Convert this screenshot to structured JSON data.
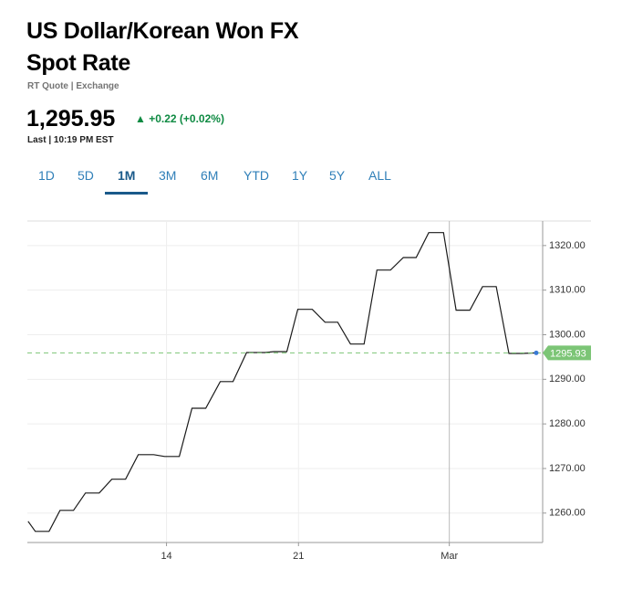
{
  "header": {
    "title_line1": "US Dollar/Korean Won FX",
    "title_line2": "Spot Rate",
    "source": "RT Quote | Exchange",
    "price": "1,295.95",
    "change": "+0.22 (+0.02%)",
    "last_update": "Last | 10:19 PM EST",
    "tabs": [
      "1D",
      "5D",
      "1M",
      "3M",
      "6M",
      "YTD",
      "1Y",
      "5Y",
      "ALL"
    ],
    "active_tab": 2
  },
  "chart_data": {
    "type": "line",
    "x": [
      6.66,
      7.04,
      7.77,
      8.35,
      9.07,
      9.7,
      10.43,
      11.1,
      11.83,
      12.5,
      13.32,
      13.9,
      14.68,
      15.35,
      16.08,
      16.85,
      17.53,
      18.25,
      19.22,
      19.7,
      20.38,
      20.96,
      21.73,
      22.41,
      23.08,
      23.76,
      24.48,
      25.16,
      25.88,
      26.56,
      27.24,
      27.91,
      28.69,
      29.36,
      30.09,
      30.76,
      31.49,
      32.16,
      32.84,
      33.61
    ],
    "series": [
      {
        "color": "#1a1a1a",
        "values": [
          1258.15,
          1255.9,
          1255.9,
          1260.6,
          1260.6,
          1264.5,
          1264.5,
          1267.6,
          1267.6,
          1273.1,
          1273.1,
          1272.7,
          1272.7,
          1283.5,
          1283.5,
          1289.5,
          1289.5,
          1296.0,
          1296.0,
          1296.2,
          1296.2,
          1305.7,
          1305.7,
          1302.8,
          1302.8,
          1297.9,
          1297.9,
          1314.5,
          1314.5,
          1317.3,
          1317.3,
          1322.9,
          1322.9,
          1305.5,
          1305.5,
          1310.8,
          1310.8,
          1295.8,
          1295.8,
          1295.93
        ]
      }
    ],
    "last_value": 1295.93,
    "last_color": "#7cc576",
    "xlim": [
      6.62,
      33.95
    ],
    "xticks": [
      14,
      21,
      {
        "value": 29,
        "label": "Mar"
      }
    ],
    "ylim": [
      1253.4,
      1325.5
    ],
    "yticks": [
      {
        "value": 1260,
        "label": "1260.00"
      },
      {
        "value": 1270,
        "label": "1270.00"
      },
      {
        "value": 1280,
        "label": "1280.00"
      },
      {
        "value": 1290,
        "label": "1290.00"
      },
      {
        "value": 1300,
        "label": "1300.00"
      },
      {
        "value": 1310,
        "label": "1310.00"
      },
      {
        "value": 1320,
        "label": "1320.00"
      }
    ],
    "grid": true
  }
}
